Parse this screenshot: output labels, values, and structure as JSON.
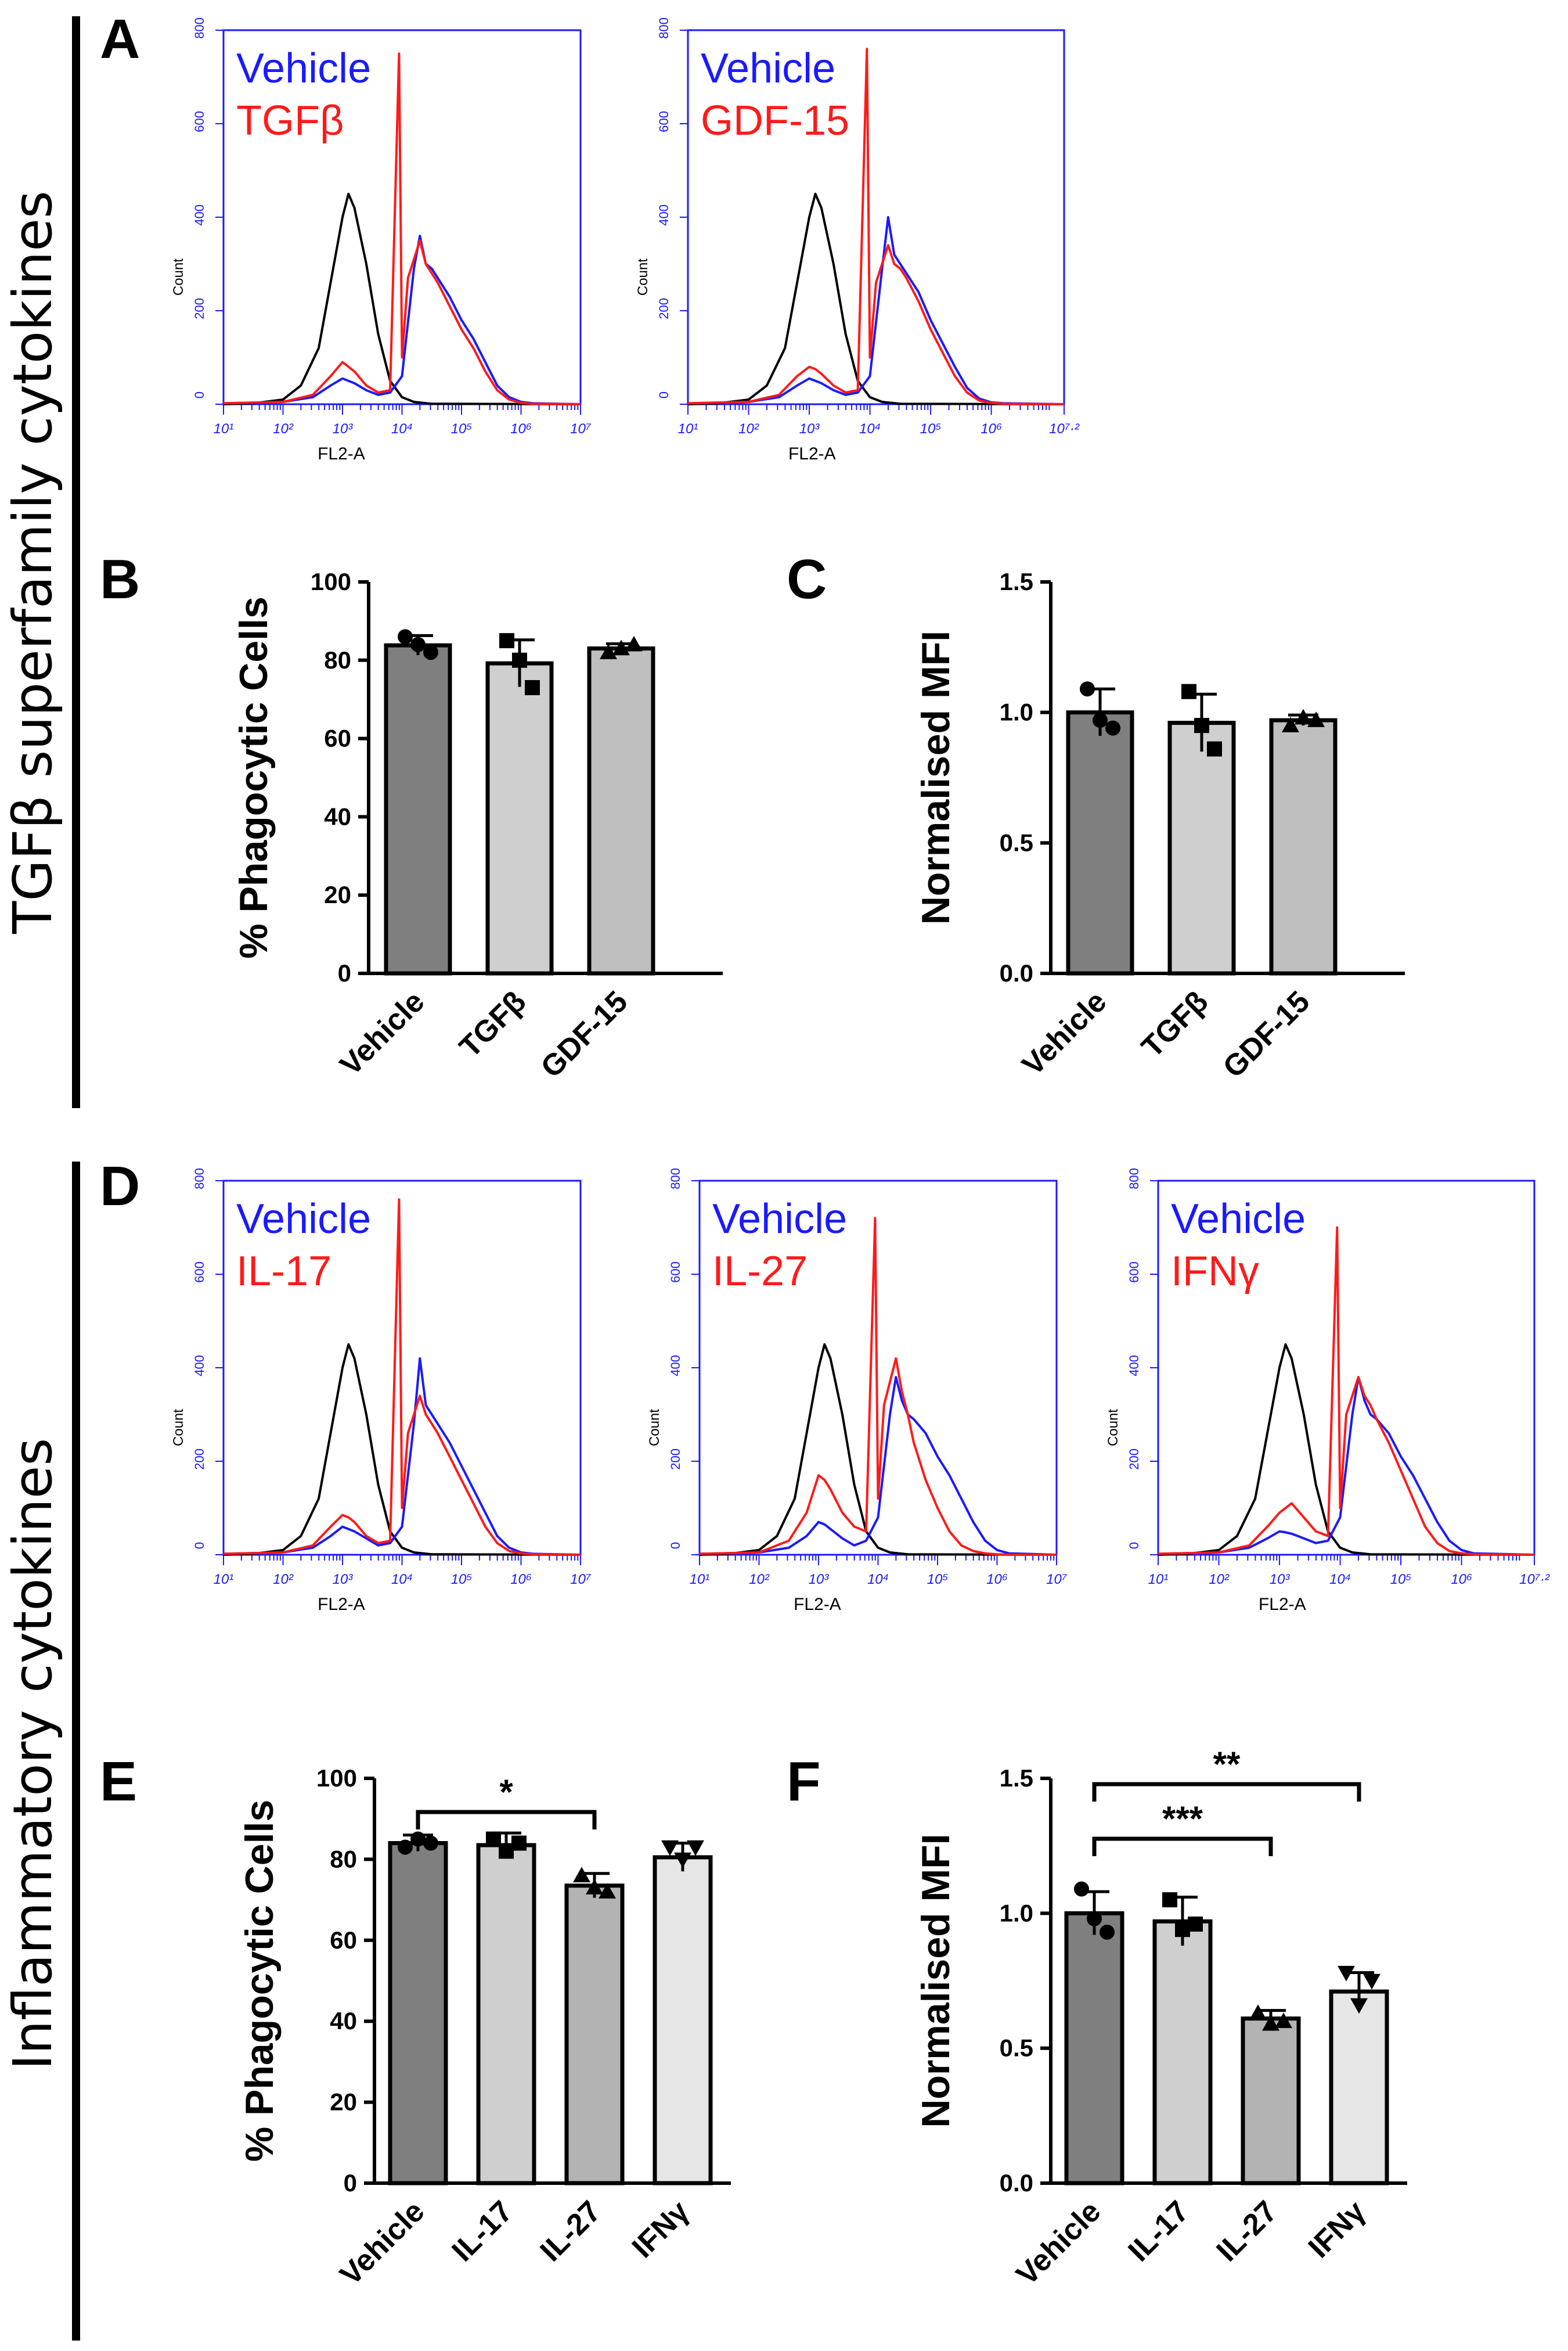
{
  "figure": {
    "section_labels": [
      "TGFβ superfamily cytokines",
      "Inflammatory cytokines"
    ],
    "panel_letters": [
      "A",
      "B",
      "C",
      "D",
      "E",
      "F"
    ]
  },
  "colors": {
    "vehicle": "#1a1aff",
    "treatment": "#ff1a1a",
    "unstained": "#000000",
    "flow_axis": "#1a1aff"
  },
  "chart_data": [
    {
      "panel": "A",
      "type": "line",
      "legend": [
        "Vehicle",
        "TGFβ"
      ],
      "xlabel": "FL2-A",
      "ylabel": "Count",
      "xticks": [
        "10¹",
        "10²",
        "10³",
        "10⁴",
        "10⁵",
        "10⁶",
        "10⁷"
      ],
      "xlim": [
        1,
        7
      ],
      "ylim": [
        0,
        800
      ],
      "yticks": [
        0,
        200,
        400,
        600,
        800
      ],
      "series": [
        {
          "name": "Vehicle",
          "x": [
            1,
            2,
            2.5,
            2.8,
            3,
            3.1,
            3.2,
            3.4,
            3.6,
            3.8,
            4,
            4.2,
            4.3,
            4.4,
            4.5,
            4.6,
            4.8,
            5,
            5.2,
            5.4,
            5.6,
            5.8,
            6,
            6.2,
            7
          ],
          "y": [
            2,
            5,
            15,
            40,
            55,
            50,
            45,
            30,
            20,
            25,
            60,
            290,
            360,
            300,
            290,
            270,
            230,
            180,
            140,
            90,
            40,
            15,
            5,
            2,
            0
          ]
        },
        {
          "name": "TGFβ",
          "x": [
            1,
            2,
            2.5,
            2.8,
            3,
            3.1,
            3.2,
            3.4,
            3.6,
            3.8,
            3.95,
            4,
            4.1,
            4.3,
            4.4,
            4.5,
            4.6,
            4.8,
            5,
            5.2,
            5.4,
            5.6,
            5.8,
            6,
            6.2,
            7
          ],
          "y": [
            2,
            5,
            20,
            60,
            90,
            80,
            70,
            40,
            25,
            30,
            750,
            100,
            270,
            350,
            300,
            280,
            260,
            210,
            160,
            120,
            70,
            30,
            10,
            3,
            1,
            0
          ]
        },
        {
          "name": "",
          "x": [
            1,
            1.5,
            2,
            2.3,
            2.6,
            2.8,
            3,
            3.1,
            3.2,
            3.4,
            3.6,
            3.8,
            4,
            4.2,
            4.5,
            7
          ],
          "y": [
            0,
            2,
            10,
            40,
            120,
            260,
            400,
            450,
            420,
            300,
            150,
            50,
            15,
            5,
            1,
            0
          ]
        }
      ]
    },
    {
      "panel": "A",
      "type": "line",
      "legend": [
        "Vehicle",
        "GDF-15"
      ],
      "xlabel": "FL2-A",
      "ylabel": "Count",
      "xticks": [
        "10¹",
        "10²",
        "10³",
        "10⁴",
        "10⁵",
        "10⁶",
        "10⁷·²"
      ],
      "xlim": [
        1,
        7.2
      ],
      "ylim": [
        0,
        800
      ],
      "yticks": [
        0,
        200,
        400,
        600,
        800
      ],
      "series": [
        {
          "name": "Vehicle",
          "x": [
            1,
            2,
            2.5,
            2.8,
            3,
            3.1,
            3.2,
            3.4,
            3.6,
            3.8,
            4,
            4.2,
            4.3,
            4.4,
            4.5,
            4.6,
            4.8,
            5,
            5.2,
            5.4,
            5.6,
            5.8,
            6,
            6.2,
            7.2
          ],
          "y": [
            2,
            5,
            15,
            40,
            55,
            50,
            45,
            30,
            20,
            25,
            60,
            290,
            400,
            320,
            300,
            280,
            240,
            180,
            130,
            80,
            35,
            12,
            4,
            2,
            0
          ]
        },
        {
          "name": "GDF-15",
          "x": [
            1,
            2,
            2.5,
            2.8,
            3,
            3.1,
            3.2,
            3.4,
            3.6,
            3.8,
            3.95,
            4,
            4.1,
            4.3,
            4.4,
            4.5,
            4.6,
            4.8,
            5,
            5.2,
            5.4,
            5.6,
            5.8,
            6,
            6.2,
            7.2
          ],
          "y": [
            2,
            5,
            20,
            60,
            80,
            75,
            65,
            40,
            25,
            30,
            760,
            100,
            260,
            340,
            300,
            290,
            270,
            220,
            160,
            110,
            60,
            25,
            8,
            3,
            1,
            0
          ]
        },
        {
          "name": "",
          "x": [
            1,
            1.5,
            2,
            2.3,
            2.6,
            2.8,
            3,
            3.1,
            3.2,
            3.4,
            3.6,
            3.8,
            4,
            4.2,
            4.5,
            7.2
          ],
          "y": [
            0,
            2,
            10,
            40,
            120,
            260,
            400,
            450,
            420,
            300,
            150,
            50,
            15,
            5,
            1,
            0
          ]
        }
      ]
    },
    {
      "panel": "B",
      "type": "bar",
      "categories": [
        "Vehicle",
        "TGFβ",
        "GDF-15"
      ],
      "values": [
        83.8,
        79.2,
        83.0
      ],
      "errors": [
        2.5,
        6.0,
        1.2
      ],
      "points": [
        [
          86,
          84,
          82
        ],
        [
          85,
          80,
          73
        ],
        [
          82,
          83,
          84
        ]
      ],
      "markers": [
        "circle",
        "square",
        "triangle"
      ],
      "ylabel": "% Phagocytic Cells",
      "ylim": [
        0,
        100
      ],
      "yticks": [
        "0",
        "20",
        "40",
        "60",
        "80",
        "100"
      ],
      "bar_colors": [
        "#7f7f7f",
        "#cfcfcf",
        "#bfbfbf"
      ]
    },
    {
      "panel": "C",
      "type": "bar",
      "categories": [
        "Vehicle",
        "TGFβ",
        "GDF-15"
      ],
      "values": [
        1.0,
        0.96,
        0.97
      ],
      "errors": [
        0.09,
        0.11,
        0.02
      ],
      "points": [
        [
          1.09,
          0.97,
          0.94
        ],
        [
          1.08,
          0.95,
          0.86
        ],
        [
          0.95,
          0.98,
          0.97
        ]
      ],
      "markers": [
        "circle",
        "square",
        "triangle"
      ],
      "ylabel": "Normalised MFI",
      "ylim": [
        0,
        1.5
      ],
      "yticks": [
        "0.0",
        "0.5",
        "1.0",
        "1.5"
      ],
      "bar_colors": [
        "#7f7f7f",
        "#cfcfcf",
        "#bfbfbf"
      ]
    },
    {
      "panel": "D",
      "type": "line",
      "legend": [
        "Vehicle",
        "IL-17"
      ],
      "xlabel": "FL2-A",
      "ylabel": "Count",
      "xticks": [
        "10¹",
        "10²",
        "10³",
        "10⁴",
        "10⁵",
        "10⁶",
        "10⁷"
      ],
      "xlim": [
        1,
        7
      ],
      "ylim": [
        0,
        800
      ],
      "yticks": [
        0,
        200,
        400,
        600,
        800
      ],
      "series": [
        {
          "name": "Vehicle",
          "x": [
            1,
            2,
            2.5,
            2.8,
            3,
            3.1,
            3.2,
            3.4,
            3.6,
            3.8,
            4,
            4.2,
            4.3,
            4.4,
            4.5,
            4.6,
            4.8,
            5,
            5.2,
            5.4,
            5.6,
            5.8,
            6,
            6.2,
            7
          ],
          "y": [
            2,
            5,
            15,
            40,
            60,
            55,
            50,
            35,
            20,
            25,
            60,
            280,
            420,
            320,
            300,
            280,
            240,
            190,
            140,
            90,
            40,
            15,
            5,
            2,
            0
          ]
        },
        {
          "name": "IL-17",
          "x": [
            1,
            2,
            2.5,
            2.8,
            3,
            3.1,
            3.2,
            3.4,
            3.6,
            3.8,
            3.95,
            4,
            4.1,
            4.3,
            4.4,
            4.5,
            4.6,
            4.8,
            5,
            5.2,
            5.4,
            5.6,
            5.8,
            6,
            6.2,
            7
          ],
          "y": [
            2,
            5,
            20,
            60,
            85,
            80,
            70,
            40,
            25,
            30,
            760,
            100,
            260,
            340,
            300,
            280,
            260,
            210,
            160,
            110,
            60,
            25,
            8,
            3,
            1,
            0
          ]
        },
        {
          "name": "",
          "x": [
            1,
            1.5,
            2,
            2.3,
            2.6,
            2.8,
            3,
            3.1,
            3.2,
            3.4,
            3.6,
            3.8,
            4,
            4.2,
            4.5,
            7
          ],
          "y": [
            0,
            2,
            10,
            40,
            120,
            260,
            400,
            450,
            420,
            300,
            150,
            50,
            15,
            5,
            1,
            0
          ]
        }
      ]
    },
    {
      "panel": "D",
      "type": "line",
      "legend": [
        "Vehicle",
        "IL-27"
      ],
      "xlabel": "FL2-A",
      "ylabel": "Count",
      "xticks": [
        "10¹",
        "10²",
        "10³",
        "10⁴",
        "10⁵",
        "10⁶",
        "10⁷"
      ],
      "xlim": [
        1,
        7
      ],
      "ylim": [
        0,
        800
      ],
      "yticks": [
        0,
        200,
        400,
        600,
        800
      ],
      "series": [
        {
          "name": "Vehicle",
          "x": [
            1,
            2,
            2.5,
            2.8,
            3,
            3.1,
            3.2,
            3.4,
            3.6,
            3.8,
            4,
            4.2,
            4.3,
            4.4,
            4.5,
            4.6,
            4.8,
            5,
            5.2,
            5.4,
            5.6,
            5.8,
            6,
            6.2,
            7
          ],
          "y": [
            2,
            5,
            15,
            40,
            70,
            65,
            55,
            35,
            20,
            30,
            80,
            300,
            380,
            330,
            300,
            290,
            260,
            210,
            170,
            120,
            70,
            30,
            10,
            3,
            0
          ]
        },
        {
          "name": "IL-27",
          "x": [
            1,
            2,
            2.5,
            2.8,
            3,
            3.1,
            3.2,
            3.4,
            3.6,
            3.8,
            3.95,
            4,
            4.1,
            4.3,
            4.4,
            4.5,
            4.6,
            4.8,
            5,
            5.2,
            5.4,
            5.6,
            5.8,
            6,
            6.2,
            7
          ],
          "y": [
            2,
            5,
            30,
            90,
            170,
            160,
            140,
            90,
            60,
            50,
            720,
            120,
            320,
            420,
            350,
            300,
            240,
            160,
            100,
            50,
            20,
            8,
            3,
            1,
            0,
            0
          ]
        },
        {
          "name": "",
          "x": [
            1,
            1.5,
            2,
            2.3,
            2.6,
            2.8,
            3,
            3.1,
            3.2,
            3.4,
            3.6,
            3.8,
            4,
            4.2,
            4.5,
            7
          ],
          "y": [
            0,
            2,
            10,
            40,
            120,
            260,
            400,
            450,
            420,
            300,
            150,
            50,
            15,
            5,
            1,
            0
          ]
        }
      ]
    },
    {
      "panel": "D",
      "type": "line",
      "legend": [
        "Vehicle",
        "IFNγ"
      ],
      "xlabel": "FL2-A",
      "ylabel": "Count",
      "xticks": [
        "10¹",
        "10²",
        "10³",
        "10⁴",
        "10⁵",
        "10⁶",
        "10⁷·²"
      ],
      "xlim": [
        1,
        7.2
      ],
      "ylim": [
        0,
        800
      ],
      "yticks": [
        0,
        200,
        400,
        600,
        800
      ],
      "series": [
        {
          "name": "Vehicle",
          "x": [
            1,
            2,
            2.5,
            2.8,
            3,
            3.1,
            3.2,
            3.4,
            3.6,
            3.8,
            4,
            4.2,
            4.3,
            4.4,
            4.5,
            4.6,
            4.8,
            5,
            5.2,
            5.4,
            5.6,
            5.8,
            6,
            6.2,
            7.2
          ],
          "y": [
            2,
            5,
            15,
            35,
            50,
            48,
            45,
            35,
            25,
            30,
            80,
            300,
            380,
            330,
            300,
            290,
            260,
            210,
            170,
            120,
            70,
            30,
            10,
            3,
            0
          ]
        },
        {
          "name": "IFNγ",
          "x": [
            1,
            2,
            2.5,
            2.8,
            3,
            3.1,
            3.2,
            3.4,
            3.6,
            3.8,
            3.95,
            4,
            4.1,
            4.3,
            4.4,
            4.5,
            4.6,
            4.8,
            5,
            5.2,
            5.4,
            5.6,
            5.8,
            6,
            6.2,
            7.2
          ],
          "y": [
            2,
            5,
            20,
            60,
            90,
            100,
            110,
            80,
            50,
            40,
            700,
            100,
            300,
            380,
            340,
            320,
            290,
            240,
            180,
            120,
            60,
            25,
            8,
            3,
            1,
            0
          ]
        },
        {
          "name": "",
          "x": [
            1,
            1.5,
            2,
            2.3,
            2.6,
            2.8,
            3,
            3.1,
            3.2,
            3.4,
            3.6,
            3.8,
            4,
            4.2,
            4.5,
            7.2
          ],
          "y": [
            0,
            2,
            10,
            40,
            120,
            260,
            400,
            450,
            420,
            300,
            150,
            50,
            15,
            5,
            1,
            0
          ]
        }
      ]
    },
    {
      "panel": "E",
      "type": "bar",
      "categories": [
        "Vehicle",
        "IL-17",
        "IL-27",
        "IFNγ"
      ],
      "values": [
        84.0,
        83.5,
        73.5,
        80.5
      ],
      "errors": [
        2.0,
        3.0,
        3.0,
        3.5
      ],
      "points": [
        [
          83,
          85,
          84
        ],
        [
          85,
          82,
          84
        ],
        [
          76,
          73,
          72
        ],
        [
          83,
          80,
          83
        ]
      ],
      "markers": [
        "circle",
        "square",
        "triangle",
        "triangle-down"
      ],
      "ylabel": "% Phagocytic Cells",
      "ylim": [
        0,
        100
      ],
      "yticks": [
        "0",
        "20",
        "40",
        "60",
        "80",
        "100"
      ],
      "bar_colors": [
        "#7f7f7f",
        "#cfcfcf",
        "#b3b3b3",
        "#e6e6e6"
      ],
      "significance": [
        {
          "from": "Vehicle",
          "to": "IL-27",
          "label": "*"
        }
      ]
    },
    {
      "panel": "F",
      "type": "bar",
      "categories": [
        "Vehicle",
        "IL-17",
        "IL-27",
        "IFNγ"
      ],
      "values": [
        1.0,
        0.97,
        0.61,
        0.71
      ],
      "errors": [
        0.08,
        0.09,
        0.03,
        0.07
      ],
      "points": [
        [
          1.09,
          0.98,
          0.93
        ],
        [
          1.05,
          0.94,
          0.96
        ],
        [
          0.63,
          0.59,
          0.6
        ],
        [
          0.78,
          0.66,
          0.75
        ]
      ],
      "markers": [
        "circle",
        "square",
        "triangle",
        "triangle-down"
      ],
      "ylabel": "Normalised MFI",
      "ylim": [
        0,
        1.5
      ],
      "yticks": [
        "0.0",
        "0.5",
        "1.0",
        "1.5"
      ],
      "bar_colors": [
        "#7f7f7f",
        "#cfcfcf",
        "#b3b3b3",
        "#e6e6e6"
      ],
      "significance": [
        {
          "from": "Vehicle",
          "to": "IL-27",
          "label": "***"
        },
        {
          "from": "Vehicle",
          "to": "IFNγ",
          "label": "**"
        }
      ]
    }
  ]
}
